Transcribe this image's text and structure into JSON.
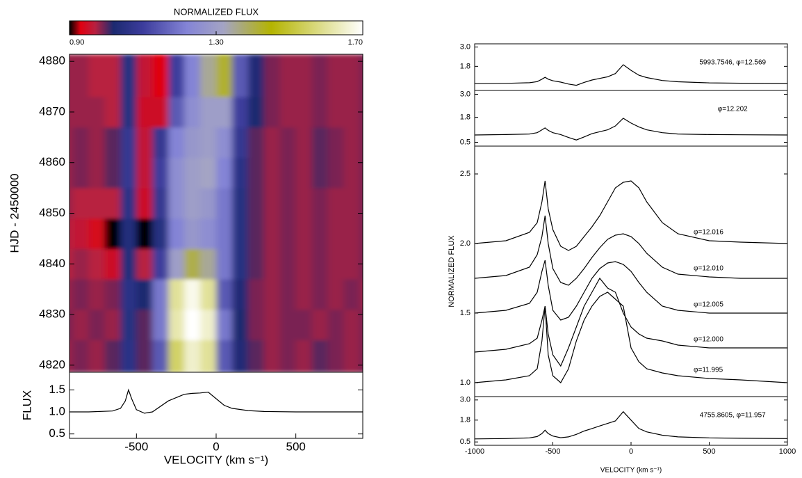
{
  "chart_data": [
    {
      "type": "heatmap",
      "title": "NORMALIZED FLUX",
      "ylabel": "HJD - 2450000",
      "xlim": [
        -920,
        920
      ],
      "ylim": [
        4818.6,
        4881.4
      ],
      "yticks": [
        4820,
        4830,
        4840,
        4850,
        4860,
        4870,
        4880
      ],
      "clim": [
        0.9,
        1.7
      ],
      "cticks": [
        {
          "value": 0.9,
          "label": "0.90"
        },
        {
          "value": 1.3,
          "label": "1.30"
        },
        {
          "value": 1.7,
          "label": "1.70"
        }
      ],
      "colormap": [
        {
          "value": 0.9,
          "color": "#000000"
        },
        {
          "value": 0.93,
          "color": "#e00010"
        },
        {
          "value": 0.97,
          "color": "#b82040"
        },
        {
          "value": 1.02,
          "color": "#1c2a70"
        },
        {
          "value": 1.1,
          "color": "#3c3c9c"
        },
        {
          "value": 1.22,
          "color": "#8484d6"
        },
        {
          "value": 1.32,
          "color": "#a4a4c4"
        },
        {
          "value": 1.45,
          "color": "#b4b400"
        },
        {
          "value": 1.7,
          "color": "#ffffff"
        }
      ],
      "x_edges": [
        -1000,
        -900,
        -800,
        -700,
        -600,
        -500,
        -400,
        -300,
        -200,
        -100,
        0,
        100,
        200,
        300,
        400,
        500,
        600,
        700,
        800,
        900,
        1000
      ],
      "y_edges": [
        4818.6,
        4825,
        4831,
        4837,
        4843,
        4849,
        4855,
        4861,
        4867,
        4873,
        4881.4
      ],
      "z": [
        [
          0.98,
          0.99,
          0.98,
          1.0,
          1.06,
          1.0,
          1.15,
          1.55,
          1.65,
          1.6,
          1.15,
          1.03,
          1.0,
          0.98,
          0.99,
          0.98,
          1.0,
          0.99,
          0.98,
          0.99
        ],
        [
          0.99,
          0.98,
          0.99,
          0.98,
          1.05,
          1.0,
          1.2,
          1.62,
          1.7,
          1.65,
          1.2,
          1.02,
          0.99,
          0.98,
          0.99,
          0.99,
          0.98,
          0.99,
          0.98,
          0.99
        ],
        [
          0.98,
          0.99,
          0.98,
          0.99,
          1.06,
          1.02,
          1.2,
          1.6,
          1.68,
          1.6,
          1.15,
          1.03,
          0.99,
          0.98,
          0.99,
          0.98,
          0.99,
          0.98,
          0.99,
          0.98
        ],
        [
          0.97,
          0.98,
          0.97,
          0.95,
          1.04,
          0.97,
          1.1,
          1.3,
          1.4,
          1.35,
          1.2,
          1.05,
          1.0,
          0.98,
          0.99,
          0.98,
          0.99,
          0.98,
          0.98,
          0.99
        ],
        [
          0.97,
          0.96,
          0.94,
          0.9,
          1.04,
          0.9,
          1.05,
          1.22,
          1.28,
          1.25,
          1.2,
          1.05,
          1.0,
          0.98,
          0.99,
          0.98,
          0.99,
          0.98,
          0.98,
          0.99
        ],
        [
          0.98,
          0.97,
          0.97,
          0.97,
          1.06,
          0.95,
          1.08,
          1.25,
          1.3,
          1.28,
          1.2,
          1.05,
          1.0,
          0.98,
          0.99,
          0.98,
          0.99,
          0.98,
          0.98,
          0.99
        ],
        [
          0.98,
          0.99,
          0.98,
          1.0,
          1.08,
          0.96,
          1.1,
          1.25,
          1.3,
          1.32,
          1.22,
          1.06,
          1.0,
          0.98,
          0.99,
          0.98,
          1.0,
          0.99,
          0.98,
          0.99
        ],
        [
          0.98,
          0.99,
          0.98,
          1.0,
          1.08,
          0.96,
          1.08,
          1.22,
          1.28,
          1.3,
          1.25,
          1.08,
          1.0,
          0.98,
          0.99,
          0.98,
          1.0,
          0.99,
          0.98,
          0.99
        ],
        [
          0.98,
          0.98,
          0.98,
          0.97,
          1.05,
          0.95,
          0.95,
          1.15,
          1.25,
          1.3,
          1.3,
          1.1,
          1.02,
          0.99,
          0.98,
          0.98,
          0.99,
          0.98,
          0.98,
          0.99
        ],
        [
          0.98,
          0.98,
          0.97,
          0.97,
          1.05,
          0.96,
          0.93,
          1.1,
          1.22,
          1.35,
          1.42,
          1.15,
          1.03,
          0.99,
          0.98,
          0.98,
          0.99,
          0.98,
          0.98,
          0.99
        ]
      ]
    },
    {
      "type": "line",
      "ylabel": "FLUX",
      "xlabel": "VELOCITY (km s⁻¹)",
      "xlim": [
        -920,
        920
      ],
      "ylim": [
        0.4,
        1.9
      ],
      "xticks": [
        -500,
        0,
        500
      ],
      "yticks": [
        0.5,
        {
          "value": 1,
          "label": "1.0"
        },
        1.5
      ],
      "x": [
        -920,
        -800,
        -650,
        -600,
        -570,
        -550,
        -530,
        -500,
        -450,
        -400,
        -300,
        -200,
        -150,
        -100,
        -50,
        0,
        50,
        100,
        200,
        300,
        500,
        700,
        920
      ],
      "series": [
        {
          "color": "#000000",
          "values": [
            1.0,
            1.0,
            1.02,
            1.08,
            1.25,
            1.5,
            1.3,
            1.05,
            0.97,
            1.0,
            1.25,
            1.4,
            1.42,
            1.43,
            1.45,
            1.3,
            1.15,
            1.08,
            1.03,
            1.01,
            1.0,
            1.0,
            1.0
          ]
        }
      ]
    },
    {
      "type": "line",
      "xlim": [
        -1000,
        1000
      ],
      "ylim": [
        0.3,
        3.2
      ],
      "yticks": [
        1.8,
        {
          "value": 3,
          "label": "3.0"
        }
      ],
      "x": [
        -1000,
        -800,
        -650,
        -600,
        -570,
        -550,
        -530,
        -500,
        -450,
        -400,
        -350,
        -300,
        -250,
        -200,
        -150,
        -100,
        -50,
        0,
        50,
        100,
        200,
        300,
        500,
        700,
        1000
      ],
      "series": [
        {
          "name": "5993.7546, φ=12.569",
          "color": "#000000",
          "values": [
            0.72,
            0.74,
            0.78,
            0.85,
            1.0,
            1.12,
            1.0,
            0.9,
            0.82,
            0.7,
            0.62,
            0.8,
            0.95,
            1.05,
            1.15,
            1.35,
            1.9,
            1.55,
            1.25,
            1.1,
            0.92,
            0.84,
            0.77,
            0.75,
            0.73
          ]
        }
      ]
    },
    {
      "type": "line",
      "xlim": [
        -1000,
        1000
      ],
      "ylim": [
        0.3,
        3.2
      ],
      "yticks": [
        0.5,
        1.8,
        {
          "value": 3,
          "label": "3.0"
        }
      ],
      "x": [
        -1000,
        -800,
        -650,
        -600,
        -570,
        -550,
        -530,
        -500,
        -450,
        -400,
        -350,
        -300,
        -250,
        -200,
        -150,
        -100,
        -50,
        0,
        50,
        100,
        200,
        300,
        500,
        700,
        1000
      ],
      "series": [
        {
          "name": "φ=12.202",
          "color": "#000000",
          "values": [
            0.88,
            0.9,
            0.93,
            1.0,
            1.15,
            1.25,
            1.12,
            1.0,
            0.9,
            0.75,
            0.62,
            0.78,
            0.95,
            1.05,
            1.15,
            1.35,
            1.75,
            1.5,
            1.3,
            1.15,
            1.0,
            0.93,
            0.9,
            0.89,
            0.88
          ]
        }
      ]
    },
    {
      "type": "line",
      "ylabel": "NORMALIZED FLUX",
      "xlim": [
        -1000,
        1000
      ],
      "ylim": [
        0.9,
        2.7
      ],
      "yticks": [
        {
          "value": 1,
          "label": "1.0"
        },
        1.5,
        {
          "value": 2,
          "label": "2.0"
        },
        2.5
      ],
      "x": [
        -1000,
        -800,
        -650,
        -600,
        -570,
        -550,
        -530,
        -500,
        -450,
        -400,
        -350,
        -300,
        -250,
        -200,
        -150,
        -100,
        -50,
        0,
        50,
        100,
        200,
        300,
        500,
        700,
        1000
      ],
      "series": [
        {
          "name": "φ=12.016",
          "color": "#000000",
          "values": [
            2.0,
            2.02,
            2.08,
            2.15,
            2.3,
            2.45,
            2.25,
            2.1,
            1.98,
            1.95,
            1.98,
            2.05,
            2.12,
            2.2,
            2.3,
            2.4,
            2.44,
            2.45,
            2.4,
            2.3,
            2.15,
            2.07,
            2.02,
            2.01,
            2.0
          ]
        },
        {
          "name": "φ=12.010",
          "color": "#000000",
          "values": [
            1.75,
            1.77,
            1.83,
            1.92,
            2.05,
            2.2,
            2.0,
            1.82,
            1.72,
            1.7,
            1.75,
            1.82,
            1.9,
            1.97,
            2.03,
            2.06,
            2.07,
            2.05,
            2.0,
            1.93,
            1.83,
            1.78,
            1.76,
            1.75,
            1.75
          ]
        },
        {
          "name": "φ=12.005",
          "color": "#000000",
          "values": [
            1.5,
            1.52,
            1.57,
            1.65,
            1.8,
            1.88,
            1.7,
            1.52,
            1.45,
            1.47,
            1.55,
            1.65,
            1.75,
            1.82,
            1.86,
            1.87,
            1.85,
            1.8,
            1.72,
            1.65,
            1.55,
            1.52,
            1.5,
            1.5,
            1.5
          ]
        },
        {
          "name": "φ=12.000",
          "color": "#000000",
          "values": [
            1.22,
            1.24,
            1.28,
            1.32,
            1.45,
            1.55,
            1.35,
            1.2,
            1.12,
            1.25,
            1.4,
            1.55,
            1.65,
            1.75,
            1.68,
            1.65,
            1.5,
            1.4,
            1.35,
            1.32,
            1.3,
            1.27,
            1.25,
            1.25,
            1.25
          ]
        },
        {
          "name": "φ=11.995",
          "color": "#000000",
          "values": [
            1.0,
            1.02,
            1.05,
            1.1,
            1.3,
            1.55,
            1.2,
            1.05,
            1.0,
            1.1,
            1.3,
            1.45,
            1.55,
            1.62,
            1.65,
            1.6,
            1.55,
            1.25,
            1.15,
            1.1,
            1.07,
            1.05,
            1.03,
            1.02,
            1.0
          ]
        }
      ]
    },
    {
      "type": "line",
      "xlabel": "VELOCITY (km s⁻¹)",
      "xlim": [
        -1000,
        1000
      ],
      "ylim": [
        0.3,
        3.2
      ],
      "xticks": [
        -1000,
        -500,
        0,
        500,
        1000
      ],
      "yticks": [
        0.5,
        1.8,
        {
          "value": 3,
          "label": "3.0"
        }
      ],
      "x": [
        -1000,
        -800,
        -650,
        -600,
        -570,
        -550,
        -530,
        -500,
        -450,
        -400,
        -350,
        -300,
        -250,
        -200,
        -150,
        -100,
        -50,
        0,
        50,
        100,
        200,
        300,
        500,
        700,
        1000
      ],
      "series": [
        {
          "name": "4755.8605, φ=11.957",
          "color": "#000000",
          "values": [
            0.68,
            0.7,
            0.74,
            0.82,
            1.0,
            1.2,
            1.0,
            0.85,
            0.75,
            0.8,
            0.95,
            1.15,
            1.3,
            1.45,
            1.6,
            1.75,
            2.3,
            1.8,
            1.3,
            1.1,
            0.9,
            0.8,
            0.74,
            0.72,
            0.7
          ]
        }
      ]
    }
  ]
}
